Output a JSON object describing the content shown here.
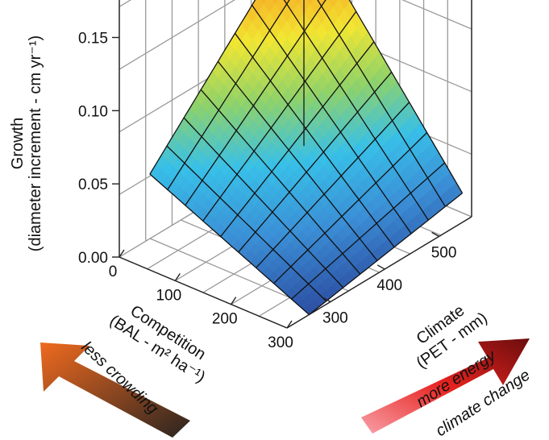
{
  "chart_data": {
    "type": "surface3d",
    "title": "",
    "zlabel_line1": "Growth",
    "zlabel_line2": "(diameter increment - cm yr⁻¹)",
    "xlabel_line1": "Competition",
    "xlabel_line2": "(BAL - m² ha⁻¹)",
    "ylabel_line1": "Climate",
    "ylabel_line2": "(PET - mm)",
    "z_ticks": [
      "0.00",
      "0.05",
      "0.10",
      "0.15"
    ],
    "z_tick_values": [
      0.0,
      0.05,
      0.1,
      0.15
    ],
    "x_ticks": [
      "0",
      "100",
      "200",
      "300"
    ],
    "x_tick_values": [
      0,
      100,
      200,
      300
    ],
    "y_ticks": [
      "300",
      "400",
      "500"
    ],
    "y_tick_values": [
      300,
      400,
      500
    ],
    "xlim": [
      0,
      300
    ],
    "ylim": [
      220,
      560
    ],
    "zlim": [
      0,
      0.18
    ],
    "surface_corners": {
      "competition_0_climate_low": 0.05,
      "competition_0_climate_high": 0.16,
      "competition_300_climate_low": 0.0,
      "competition_300_climate_high": 0.02
    },
    "grid_lines": 9,
    "colormap": [
      "#2d4fa3",
      "#3b8fd6",
      "#38c0e8",
      "#8fd26a",
      "#f1e632",
      "#f7a325",
      "#e8231f"
    ],
    "annotations": {
      "left_arrow": "less crowding",
      "right_arrow_1": "more energy",
      "right_arrow_2": "climate change"
    },
    "arrow_colors": {
      "left_start": "#2a2420",
      "left_end": "#ef6a1f",
      "right_start": "#f7a0a8",
      "right_mid": "#e8231f",
      "right_end": "#6b0d0d"
    }
  }
}
